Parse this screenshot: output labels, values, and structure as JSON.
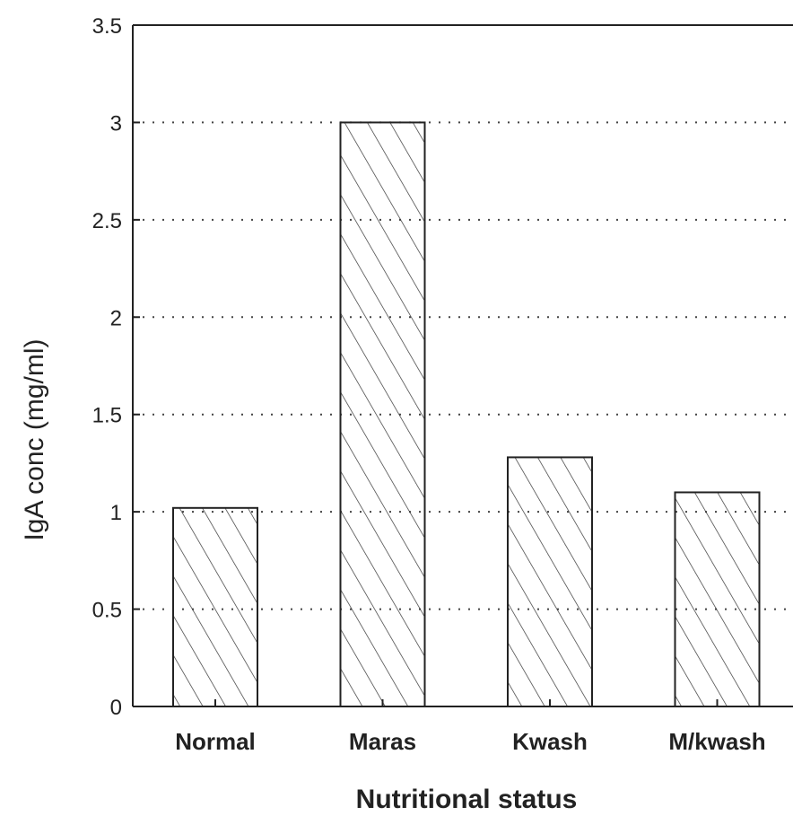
{
  "chart_data": {
    "type": "bar",
    "categories": [
      "Normal",
      "Maras",
      "Kwash",
      "M/kwash"
    ],
    "values": [
      1.02,
      3.0,
      1.28,
      1.1
    ],
    "xlabel": "Nutritional status",
    "ylabel": "IgA conc (mg/ml)",
    "ylim": [
      0,
      3.5
    ],
    "yticks": [
      "0",
      "0.5",
      "1",
      "1.5",
      "2",
      "2.5",
      "3",
      "3.5"
    ],
    "grid": true,
    "fill_pattern": "diagonal-hatch",
    "colors": {
      "bar_outline": "#222222",
      "hatch": "#333333",
      "grid": "#444444",
      "axis": "#222222"
    }
  }
}
